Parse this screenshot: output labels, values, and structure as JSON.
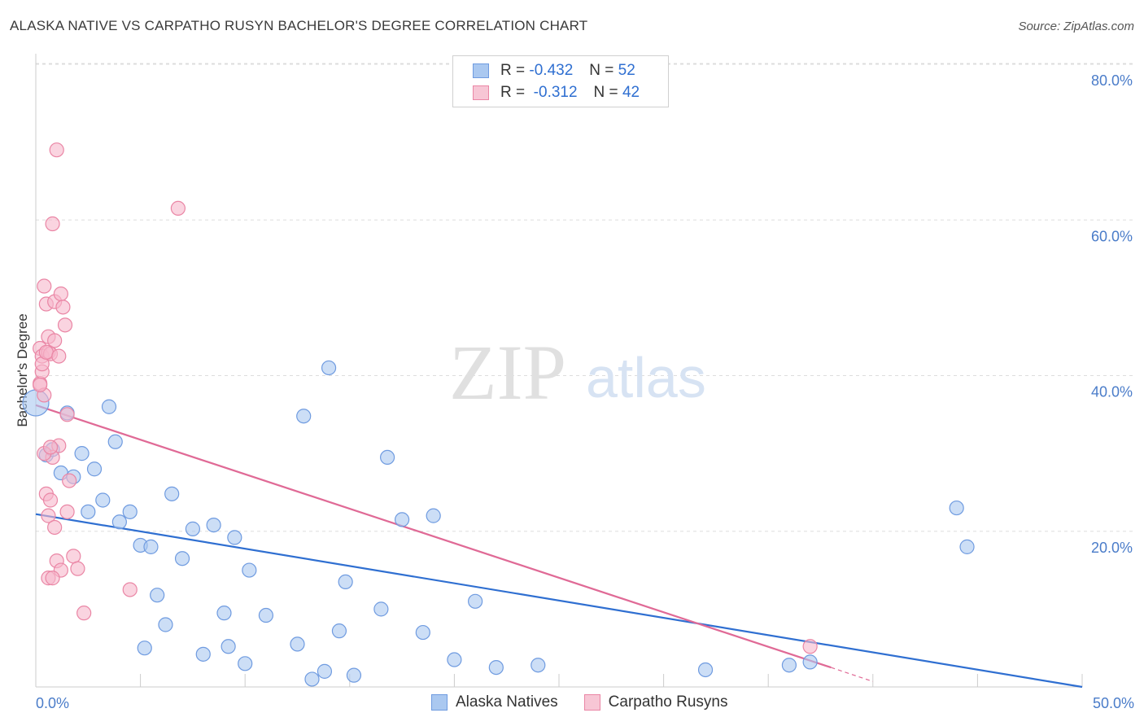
{
  "chart_data": {
    "type": "scatter",
    "title": "ALASKA NATIVE VS CARPATHO RUSYN BACHELOR'S DEGREE CORRELATION CHART",
    "source": "Source: ZipAtlas.com",
    "ylabel": "Bachelor's Degree",
    "xlim": [
      0,
      50
    ],
    "ylim": [
      0,
      80
    ],
    "x_tick_labels": [
      "0.0%",
      "50.0%"
    ],
    "y_ticks": [
      20,
      40,
      60,
      80
    ],
    "y_tick_labels": [
      "20.0%",
      "40.0%",
      "60.0%",
      "80.0%"
    ],
    "watermark": {
      "zip": "ZIP",
      "atlas": "atlas"
    },
    "colors": {
      "alaska_fill": "#aac8f0",
      "alaska_stroke": "#6f9be0",
      "alaska_line": "#2f6fd1",
      "rusyn_fill": "#f7b8cb",
      "rusyn_stroke": "#ea86a5",
      "rusyn_line": "#e06a96",
      "grid": "#dddddd",
      "tick_text": "#4a7cc9"
    },
    "legend": [
      {
        "r_label": "R =",
        "r": "-0.432",
        "n_label": "N =",
        "n": "52"
      },
      {
        "r_label": "R =",
        "r": "-0.312",
        "n_label": "N =",
        "n": "42"
      }
    ],
    "series": [
      {
        "name": "Alaska Natives",
        "trend": {
          "x0": 0,
          "y0": 22.2,
          "x1": 50,
          "y1": 0
        },
        "points": [
          [
            0.0,
            36.5
          ],
          [
            0.5,
            29.8
          ],
          [
            0.8,
            30.5
          ],
          [
            1.2,
            27.5
          ],
          [
            1.5,
            35.2
          ],
          [
            1.8,
            27.0
          ],
          [
            2.2,
            30.0
          ],
          [
            2.5,
            22.5
          ],
          [
            2.8,
            28.0
          ],
          [
            3.2,
            24.0
          ],
          [
            3.5,
            36.0
          ],
          [
            3.8,
            31.5
          ],
          [
            4.0,
            21.2
          ],
          [
            4.5,
            22.5
          ],
          [
            5.0,
            18.2
          ],
          [
            5.5,
            18.0
          ],
          [
            5.8,
            11.8
          ],
          [
            6.2,
            8.0
          ],
          [
            6.5,
            24.8
          ],
          [
            7.0,
            16.5
          ],
          [
            7.5,
            20.3
          ],
          [
            8.0,
            4.2
          ],
          [
            8.5,
            20.8
          ],
          [
            9.0,
            9.5
          ],
          [
            9.5,
            19.2
          ],
          [
            9.2,
            5.2
          ],
          [
            10.0,
            3.0
          ],
          [
            10.2,
            15.0
          ],
          [
            11.0,
            9.2
          ],
          [
            12.5,
            5.5
          ],
          [
            12.8,
            34.8
          ],
          [
            13.2,
            1.0
          ],
          [
            13.8,
            2.0
          ],
          [
            14.0,
            41.0
          ],
          [
            14.5,
            7.2
          ],
          [
            14.8,
            13.5
          ],
          [
            15.2,
            1.5
          ],
          [
            16.5,
            10.0
          ],
          [
            16.8,
            29.5
          ],
          [
            17.5,
            21.5
          ],
          [
            18.5,
            7.0
          ],
          [
            19.0,
            22.0
          ],
          [
            20.0,
            3.5
          ],
          [
            21.0,
            11.0
          ],
          [
            22.0,
            2.5
          ],
          [
            24.0,
            2.8
          ],
          [
            32.0,
            2.2
          ],
          [
            36.0,
            2.8
          ],
          [
            37.0,
            3.2
          ],
          [
            44.0,
            23.0
          ],
          [
            44.5,
            18.0
          ],
          [
            5.2,
            5.0
          ]
        ]
      },
      {
        "name": "Carpatho Rusyns",
        "trend": {
          "x0": 0,
          "y0": 36.2,
          "x1": 38.0,
          "y1": 2.5
        },
        "trend_ext": {
          "x0": 38.0,
          "y0": 2.5,
          "x1": 40.0,
          "y1": 0.7
        },
        "points": [
          [
            0.2,
            43.5
          ],
          [
            0.3,
            42.5
          ],
          [
            0.2,
            39.0
          ],
          [
            0.3,
            40.5
          ],
          [
            0.4,
            51.5
          ],
          [
            0.5,
            49.2
          ],
          [
            0.6,
            45.0
          ],
          [
            0.4,
            37.5
          ],
          [
            0.6,
            43.0
          ],
          [
            0.7,
            42.8
          ],
          [
            0.8,
            59.5
          ],
          [
            0.9,
            49.5
          ],
          [
            1.0,
            69.0
          ],
          [
            1.1,
            31.0
          ],
          [
            1.2,
            50.5
          ],
          [
            1.3,
            48.8
          ],
          [
            1.4,
            46.5
          ],
          [
            1.5,
            35.0
          ],
          [
            0.5,
            24.8
          ],
          [
            0.6,
            22.0
          ],
          [
            0.7,
            24.0
          ],
          [
            0.8,
            29.5
          ],
          [
            0.9,
            20.5
          ],
          [
            1.0,
            16.2
          ],
          [
            1.2,
            15.0
          ],
          [
            0.6,
            14.0
          ],
          [
            0.8,
            14.0
          ],
          [
            1.5,
            22.5
          ],
          [
            1.6,
            26.5
          ],
          [
            1.8,
            16.8
          ],
          [
            2.0,
            15.2
          ],
          [
            2.3,
            9.5
          ],
          [
            4.5,
            12.5
          ],
          [
            6.8,
            61.5
          ],
          [
            0.4,
            30.0
          ],
          [
            0.3,
            41.5
          ],
          [
            0.5,
            43.0
          ],
          [
            0.9,
            44.5
          ],
          [
            0.7,
            30.8
          ],
          [
            1.1,
            42.5
          ],
          [
            37.0,
            5.2
          ],
          [
            0.2,
            38.8
          ]
        ]
      }
    ]
  }
}
